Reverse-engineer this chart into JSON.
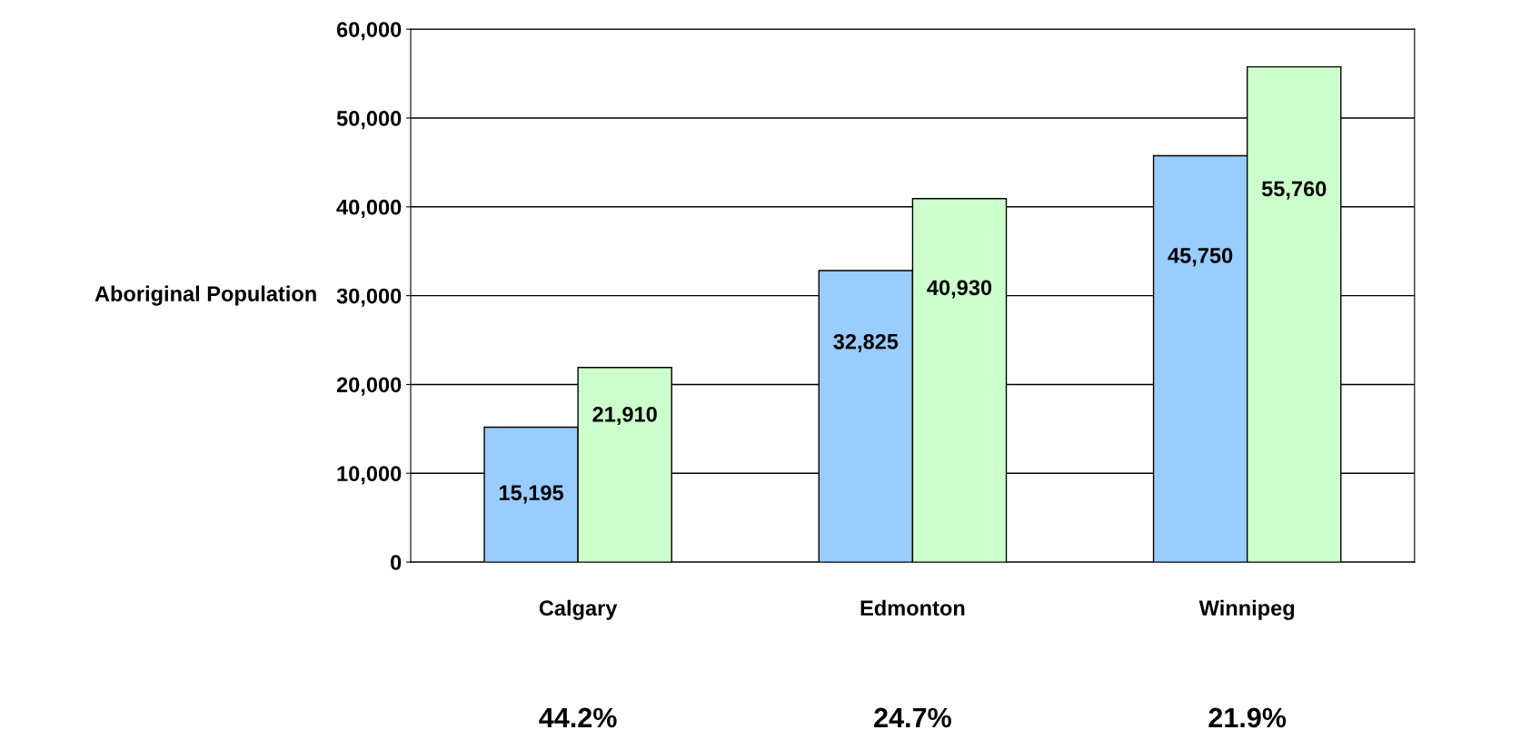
{
  "chart_data": {
    "type": "bar",
    "ylabel": "Aboriginal Population",
    "categories": [
      "Calgary",
      "Edmonton",
      "Winnipeg"
    ],
    "series": [
      {
        "color": "#99ccff",
        "values": [
          15195,
          32825,
          45750
        ],
        "value_labels": [
          "15,195",
          "32,825",
          "45,750"
        ]
      },
      {
        "color": "#ccffcc",
        "values": [
          21910,
          40930,
          55760
        ],
        "value_labels": [
          "21,910",
          "40,930",
          "55,760"
        ]
      }
    ],
    "ylim": [
      0,
      60000
    ],
    "yticks": [
      0,
      {
        "value": 10000,
        "label": "10,000"
      },
      {
        "value": 20000,
        "label": "20,000"
      },
      {
        "value": 30000,
        "label": "30,000"
      },
      {
        "value": 40000,
        "label": "40,000"
      },
      {
        "value": 50000,
        "label": "50,000"
      },
      {
        "value": 60000,
        "label": "60,000"
      }
    ],
    "grid": "y",
    "annotations": [
      "44.2%",
      "24.7%",
      "21.9%"
    ]
  }
}
